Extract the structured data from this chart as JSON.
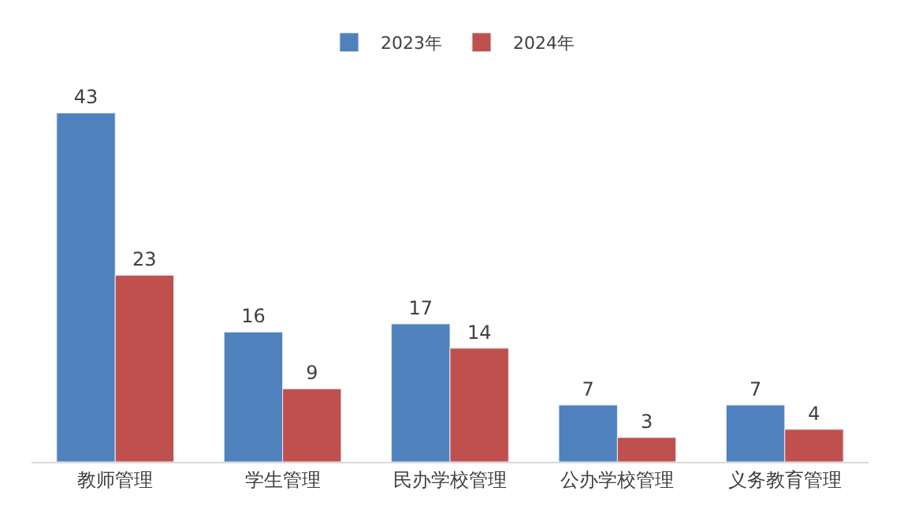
{
  "chart_data": {
    "type": "bar",
    "categories": [
      "教师管理",
      "学生管理",
      "民办学校管理",
      "公办学校管理",
      "义务教育管理"
    ],
    "series": [
      {
        "name": "2023年",
        "color": "#4f81bd",
        "values": [
          43,
          16,
          17,
          7,
          7
        ]
      },
      {
        "name": "2024年",
        "color": "#c0504d",
        "values": [
          23,
          9,
          14,
          3,
          4
        ]
      }
    ],
    "data_labels": true,
    "legend": "top",
    "tick_labels": "x"
  }
}
